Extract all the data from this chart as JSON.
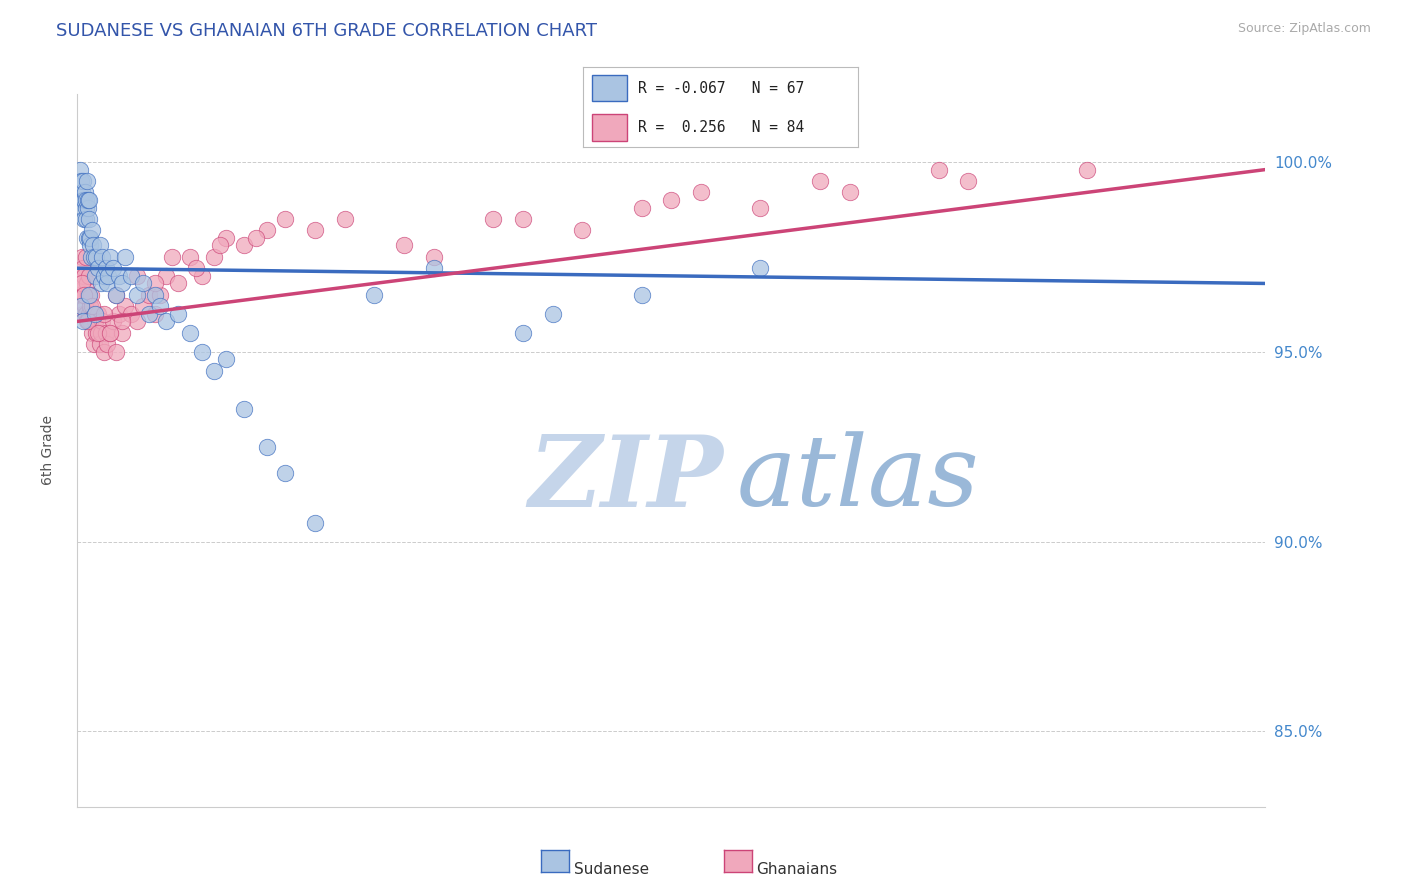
{
  "title": "SUDANESE VS GHANAIAN 6TH GRADE CORRELATION CHART",
  "source": "Source: ZipAtlas.com",
  "ylabel": "6th Grade",
  "yticks": [
    85.0,
    90.0,
    95.0,
    100.0
  ],
  "ytick_labels": [
    "85.0%",
    "90.0%",
    "95.0%",
    "100.0%"
  ],
  "xmin": 0.0,
  "xmax": 20.0,
  "ymin": 83.0,
  "ymax": 101.8,
  "sudanese_R": -0.067,
  "sudanese_N": 67,
  "ghanaian_R": 0.256,
  "ghanaian_N": 84,
  "sudanese_color": "#aac4e2",
  "ghanaian_color": "#f0a8bc",
  "sudanese_line_color": "#3a6bbf",
  "ghanaian_line_color": "#cc4477",
  "watermark_zip_color": "#c5d5ea",
  "watermark_atlas_color": "#9ab8d8",
  "legend_label_1": "Sudanese",
  "legend_label_2": "Ghanaians",
  "sudanese_x": [
    0.05,
    0.07,
    0.08,
    0.09,
    0.1,
    0.1,
    0.11,
    0.12,
    0.13,
    0.14,
    0.15,
    0.15,
    0.16,
    0.17,
    0.18,
    0.18,
    0.19,
    0.2,
    0.2,
    0.21,
    0.22,
    0.23,
    0.25,
    0.26,
    0.28,
    0.3,
    0.32,
    0.35,
    0.38,
    0.4,
    0.42,
    0.45,
    0.48,
    0.5,
    0.52,
    0.55,
    0.6,
    0.65,
    0.7,
    0.75,
    0.8,
    0.9,
    1.0,
    1.1,
    1.2,
    1.3,
    1.4,
    1.5,
    1.7,
    1.9,
    2.1,
    2.3,
    2.5,
    2.8,
    3.2,
    3.5,
    4.0,
    5.0,
    6.0,
    7.5,
    8.0,
    9.5,
    11.5,
    0.06,
    0.1,
    0.2,
    0.3
  ],
  "sudanese_y": [
    99.8,
    99.5,
    99.2,
    99.0,
    98.8,
    99.5,
    99.0,
    98.5,
    99.2,
    98.8,
    99.0,
    98.5,
    99.5,
    98.0,
    98.8,
    99.0,
    98.5,
    98.0,
    99.0,
    97.8,
    98.0,
    97.5,
    98.2,
    97.8,
    97.5,
    97.0,
    97.5,
    97.2,
    97.8,
    96.8,
    97.5,
    97.0,
    97.2,
    96.8,
    97.0,
    97.5,
    97.2,
    96.5,
    97.0,
    96.8,
    97.5,
    97.0,
    96.5,
    96.8,
    96.0,
    96.5,
    96.2,
    95.8,
    96.0,
    95.5,
    95.0,
    94.5,
    94.8,
    93.5,
    92.5,
    91.8,
    90.5,
    96.5,
    97.2,
    95.5,
    96.0,
    96.5,
    97.2,
    96.2,
    95.8,
    96.5,
    96.0
  ],
  "ghanaian_x": [
    0.05,
    0.06,
    0.07,
    0.08,
    0.09,
    0.1,
    0.11,
    0.12,
    0.13,
    0.14,
    0.15,
    0.16,
    0.17,
    0.18,
    0.19,
    0.2,
    0.21,
    0.22,
    0.23,
    0.25,
    0.27,
    0.28,
    0.3,
    0.32,
    0.35,
    0.38,
    0.4,
    0.42,
    0.45,
    0.48,
    0.5,
    0.55,
    0.6,
    0.65,
    0.7,
    0.75,
    0.8,
    0.9,
    1.0,
    1.1,
    1.2,
    1.3,
    1.4,
    1.5,
    1.7,
    1.9,
    2.1,
    2.3,
    2.5,
    2.8,
    3.2,
    3.5,
    4.5,
    6.0,
    7.5,
    9.5,
    10.5,
    12.5,
    14.5,
    0.08,
    0.12,
    0.18,
    0.25,
    0.35,
    0.45,
    0.55,
    0.65,
    0.75,
    1.0,
    1.3,
    1.6,
    2.0,
    2.4,
    3.0,
    4.0,
    5.5,
    7.0,
    8.5,
    10.0,
    11.5,
    13.0,
    15.0,
    17.0
  ],
  "ghanaian_y": [
    96.5,
    97.0,
    96.8,
    97.5,
    96.0,
    97.2,
    96.5,
    97.0,
    96.2,
    97.5,
    96.0,
    96.8,
    95.8,
    96.5,
    96.0,
    97.0,
    96.2,
    95.8,
    96.5,
    95.5,
    96.0,
    95.2,
    95.8,
    95.5,
    96.0,
    95.2,
    95.5,
    95.8,
    95.0,
    95.5,
    95.2,
    95.5,
    95.8,
    95.0,
    96.0,
    95.5,
    96.2,
    96.0,
    95.8,
    96.2,
    96.5,
    96.0,
    96.5,
    97.0,
    96.8,
    97.5,
    97.0,
    97.5,
    98.0,
    97.8,
    98.2,
    98.5,
    98.5,
    97.5,
    98.5,
    98.8,
    99.2,
    99.5,
    99.8,
    96.8,
    96.5,
    95.8,
    96.2,
    95.5,
    96.0,
    95.5,
    96.5,
    95.8,
    97.0,
    96.8,
    97.5,
    97.2,
    97.8,
    98.0,
    98.2,
    97.8,
    98.5,
    98.2,
    99.0,
    98.8,
    99.2,
    99.5,
    99.8
  ],
  "sudanese_trend": [
    97.2,
    96.8
  ],
  "ghanaian_trend": [
    95.8,
    99.8
  ],
  "trend_x": [
    0.0,
    20.0
  ]
}
